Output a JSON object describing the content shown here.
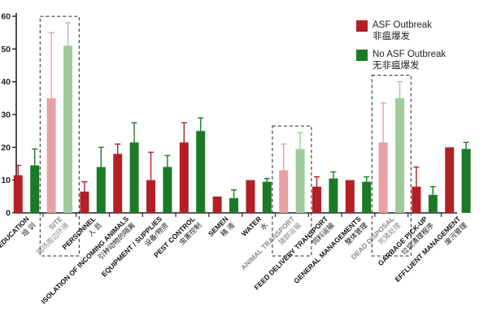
{
  "chart_data": {
    "type": "bar",
    "title": "",
    "xlabel": "",
    "ylabel": "",
    "ylim": [
      0,
      60
    ],
    "yticks": [
      0,
      10,
      20,
      30,
      40,
      50,
      60
    ],
    "categories": [
      "EDUCATION 培训",
      "SITE 猪场周边环境",
      "PERSONNEL 人员",
      "ISOLATION OF INCOMING ANIMALS 引种动物的隔离",
      "EQUIPMENT / SUPPLIES 设备/物资",
      "PEST CONTROL 虫害控制",
      "SEMEN 精液",
      "WATER 水",
      "ANIMAL TRANSPORT 猪群运输",
      "FEED DELIVERY TRANSPORT 饲料运输",
      "GENERAL MANAGEMENTS 整体管理",
      "DEAD DISPOSAL 死猪处理",
      "GARBAGE PICK-UP 垃圾清理程序",
      "EFFLUENT MANAGEMENT 废污管理"
    ],
    "x_label_lines": [
      [
        "EDUCATION",
        "培 训"
      ],
      [
        "SITE",
        "猪场周边环境"
      ],
      [
        "PERSONNEL",
        "人 员"
      ],
      [
        "ISOLATION OF INCOMING ANIMALS",
        "引种动物的隔离"
      ],
      [
        "EQUIPMENT / SUPPLIES",
        "设备/物资"
      ],
      [
        "PEST CONTROL",
        "虫害控制"
      ],
      [
        "SEMEN",
        "精 液"
      ],
      [
        "WATER",
        "水"
      ],
      [
        "ANIMAL TRANSPORT",
        "猪群运输"
      ],
      [
        "FEED DELIVERY TRANSPORT",
        "饲料运输"
      ],
      [
        "GENERAL MANAGEMENTS",
        "整体管理"
      ],
      [
        "DEAD DISPOSAL",
        "死猪处理"
      ],
      [
        "GARBAGE PICK-UP",
        "垃圾清理程序"
      ],
      [
        "EFFLUENT MANAGEMENT",
        "废污管理"
      ]
    ],
    "series": [
      {
        "name": "ASF Outbreak 非瘟爆发",
        "legend_lines": [
          "ASF Outbreak",
          "非瘟爆发"
        ],
        "color": "#b22025",
        "light_color": "#e8a0a2",
        "values": [
          11.5,
          35,
          6.5,
          18,
          10,
          21.5,
          5,
          10,
          13,
          8,
          10,
          21.5,
          8,
          20
        ],
        "errors": [
          3,
          20,
          3,
          3,
          8.5,
          6,
          0,
          0,
          8,
          3,
          0,
          12,
          6,
          0
        ]
      },
      {
        "name": "No ASF Outbreak 无非瘟爆发",
        "legend_lines": [
          "No ASF Outbreak",
          "无非瘟爆发"
        ],
        "color": "#1c7a27",
        "light_color": "#9fcb9c",
        "values": [
          14.5,
          51,
          14,
          21.5,
          14,
          25,
          4.5,
          9.5,
          19.5,
          10.5,
          9.5,
          35,
          5.5,
          19.5
        ],
        "errors": [
          5,
          7,
          6,
          6,
          3.5,
          4,
          2.5,
          1,
          5,
          2,
          1.5,
          5,
          2.5,
          2
        ]
      }
    ],
    "highlighted_categories": [
      1,
      8,
      11
    ]
  }
}
